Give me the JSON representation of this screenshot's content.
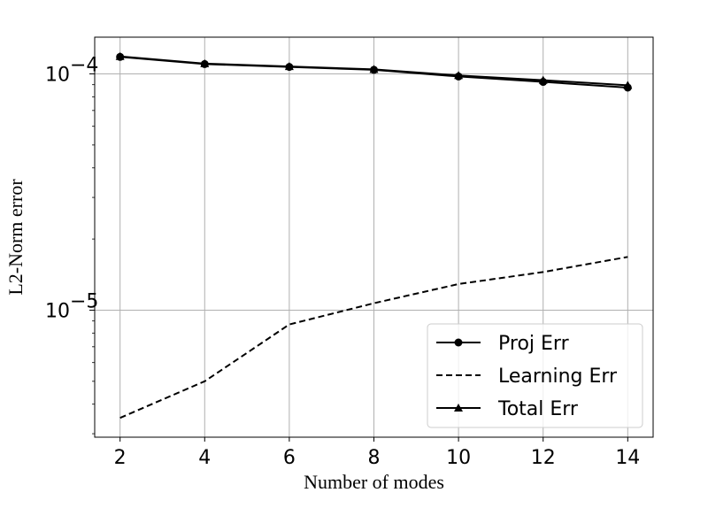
{
  "chart_data": {
    "type": "line",
    "title": "",
    "xlabel": "Number of modes",
    "ylabel": "L2-Norm error",
    "x": [
      2,
      4,
      6,
      8,
      10,
      12,
      14
    ],
    "xlim": [
      1.4,
      14.6
    ],
    "ylim": [
      2.9e-06,
      0.000143
    ],
    "yscale": "log",
    "grid": true,
    "legend_position": "lower-right",
    "xticks": [
      2,
      4,
      6,
      8,
      10,
      12,
      14
    ],
    "yticks": [
      {
        "value": 1e-05,
        "mantissa": "10",
        "exponent": "−5"
      },
      {
        "value": 0.0001,
        "mantissa": "10",
        "exponent": "−4"
      }
    ],
    "series": [
      {
        "name": "Proj Err",
        "style": "solid",
        "marker": "circle",
        "color": "#000000",
        "values": [
          0.000118,
          0.00011,
          0.000107,
          0.000104,
          9.75e-05,
          9.25e-05,
          8.75e-05
        ]
      },
      {
        "name": "Learning Err",
        "style": "dashed",
        "marker": "none",
        "color": "#000000",
        "values": [
          3.5e-06,
          5e-06,
          8.7e-06,
          1.07e-05,
          1.29e-05,
          1.45e-05,
          1.68e-05
        ]
      },
      {
        "name": "Total Err",
        "style": "solid",
        "marker": "triangle",
        "color": "#000000",
        "values": [
          0.0001185,
          0.0001105,
          0.0001075,
          0.0001045,
          9.85e-05,
          9.4e-05,
          8.95e-05
        ]
      }
    ]
  }
}
